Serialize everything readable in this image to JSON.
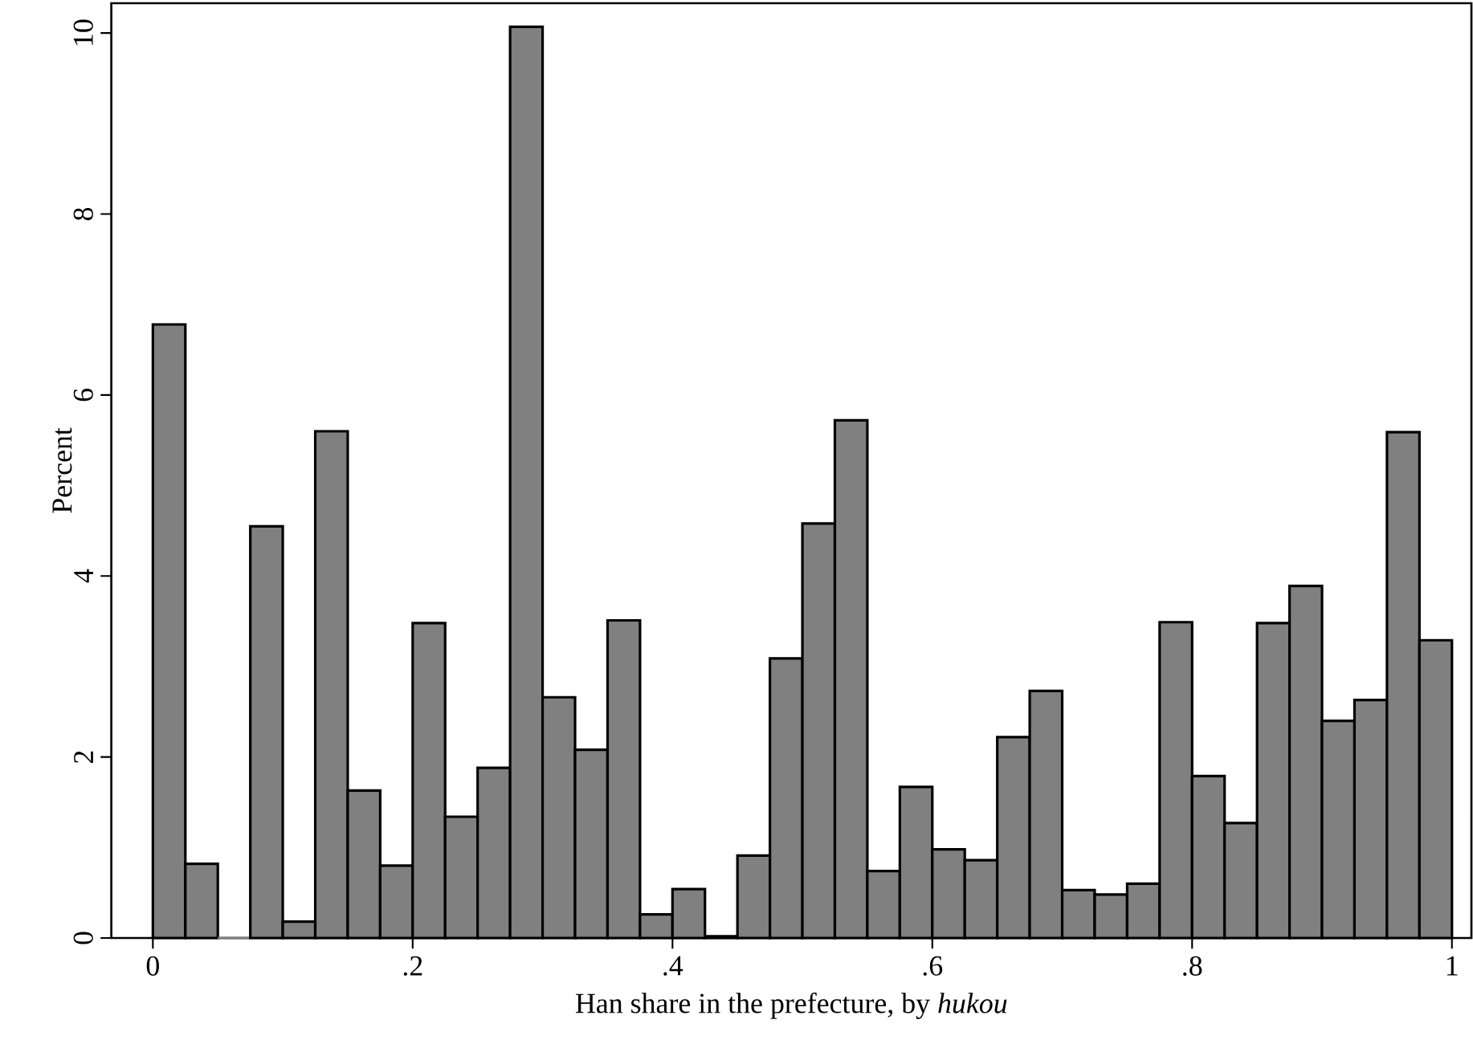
{
  "chart_data": {
    "type": "histogram",
    "xlabel": "Han share in the prefecture, by *hukou*",
    "ylabel": "Percent",
    "color": "#808080",
    "bins": [
      0,
      0.025,
      0.05,
      0.075,
      0.1,
      0.125,
      0.15,
      0.175,
      0.2,
      0.225,
      0.25,
      0.275,
      0.3,
      0.325,
      0.35,
      0.375,
      0.4,
      0.425,
      0.45,
      0.475,
      0.5,
      0.525,
      0.55,
      0.575,
      0.6,
      0.625,
      0.65,
      0.675,
      0.7,
      0.725,
      0.75,
      0.775,
      0.8,
      0.825,
      0.85,
      0.875,
      0.9,
      0.925,
      0.95,
      0.975,
      1
    ],
    "values": [
      6.78,
      0.82,
      0,
      4.55,
      0.18,
      5.6,
      1.63,
      0.8,
      3.48,
      1.34,
      1.88,
      10.07,
      2.66,
      2.08,
      3.51,
      0.26,
      0.54,
      0.02,
      0.91,
      3.09,
      4.58,
      5.72,
      0.74,
      1.67,
      0.98,
      0.86,
      2.22,
      2.73,
      0.53,
      0.48,
      0.6,
      3.49,
      1.79,
      1.27,
      3.48,
      3.89,
      2.4,
      2.63,
      5.59,
      3.29
    ],
    "xlim": [
      -0.032,
      1.015
    ],
    "ylim": [
      0,
      10.33
    ],
    "xticks": [
      0,
      {
        "value": 0.2,
        "label": ".2"
      },
      {
        "value": 0.4,
        "label": ".4"
      },
      {
        "value": 0.6,
        "label": ".6"
      },
      {
        "value": 0.8,
        "label": ".8"
      },
      1
    ],
    "yticks": [
      0,
      2,
      4,
      6,
      8,
      10
    ],
    "grid": false
  }
}
